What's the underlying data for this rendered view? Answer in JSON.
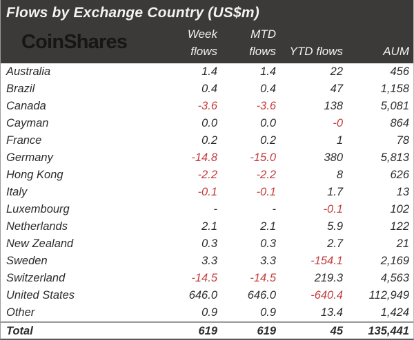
{
  "title": "Flows by Exchange Country (US$m)",
  "logo": "CoinShares",
  "columns": [
    {
      "line1": "Week",
      "line2": "flows"
    },
    {
      "line1": "MTD",
      "line2": "flows"
    },
    {
      "line1": "",
      "line2": "YTD flows"
    },
    {
      "line1": "",
      "line2": "AUM"
    }
  ],
  "rows": [
    {
      "country": "Australia",
      "week": "1.4",
      "mtd": "1.4",
      "ytd": "22",
      "aum": "456"
    },
    {
      "country": "Brazil",
      "week": "0.4",
      "mtd": "0.4",
      "ytd": "47",
      "aum": "1,158"
    },
    {
      "country": "Canada",
      "week": "-3.6",
      "mtd": "-3.6",
      "ytd": "138",
      "aum": "5,081"
    },
    {
      "country": "Cayman",
      "week": "0.0",
      "mtd": "0.0",
      "ytd": "-0",
      "aum": "864"
    },
    {
      "country": "France",
      "week": "0.2",
      "mtd": "0.2",
      "ytd": "1",
      "aum": "78"
    },
    {
      "country": "Germany",
      "week": "-14.8",
      "mtd": "-15.0",
      "ytd": "380",
      "aum": "5,813"
    },
    {
      "country": "Hong Kong",
      "week": "-2.2",
      "mtd": "-2.2",
      "ytd": "8",
      "aum": "626"
    },
    {
      "country": "Italy",
      "week": "-0.1",
      "mtd": "-0.1",
      "ytd": "1.7",
      "aum": "13"
    },
    {
      "country": "Luxembourg",
      "week": "-",
      "mtd": "-",
      "ytd": "-0.1",
      "aum": "102"
    },
    {
      "country": "Netherlands",
      "week": "2.1",
      "mtd": "2.1",
      "ytd": "5.9",
      "aum": "122"
    },
    {
      "country": "New Zealand",
      "week": "0.3",
      "mtd": "0.3",
      "ytd": "2.7",
      "aum": "21"
    },
    {
      "country": "Sweden",
      "week": "3.3",
      "mtd": "3.3",
      "ytd": "-154.1",
      "aum": "2,169"
    },
    {
      "country": "Switzerland",
      "week": "-14.5",
      "mtd": "-14.5",
      "ytd": "219.3",
      "aum": "4,563"
    },
    {
      "country": "United States",
      "week": "646.0",
      "mtd": "646.0",
      "ytd": "-640.4",
      "aum": "112,949"
    },
    {
      "country": "Other",
      "week": "0.9",
      "mtd": "0.9",
      "ytd": "13.4",
      "aum": "1,424"
    }
  ],
  "total": {
    "country": "Total",
    "week": "619",
    "mtd": "619",
    "ytd": "45",
    "aum": "135,441"
  },
  "colors": {
    "header_bg": "#3b3a38",
    "header_text": "#f2f2f2",
    "body_text": "#2b2b2b",
    "negative": "#c43b3b",
    "logo": "#161616"
  }
}
